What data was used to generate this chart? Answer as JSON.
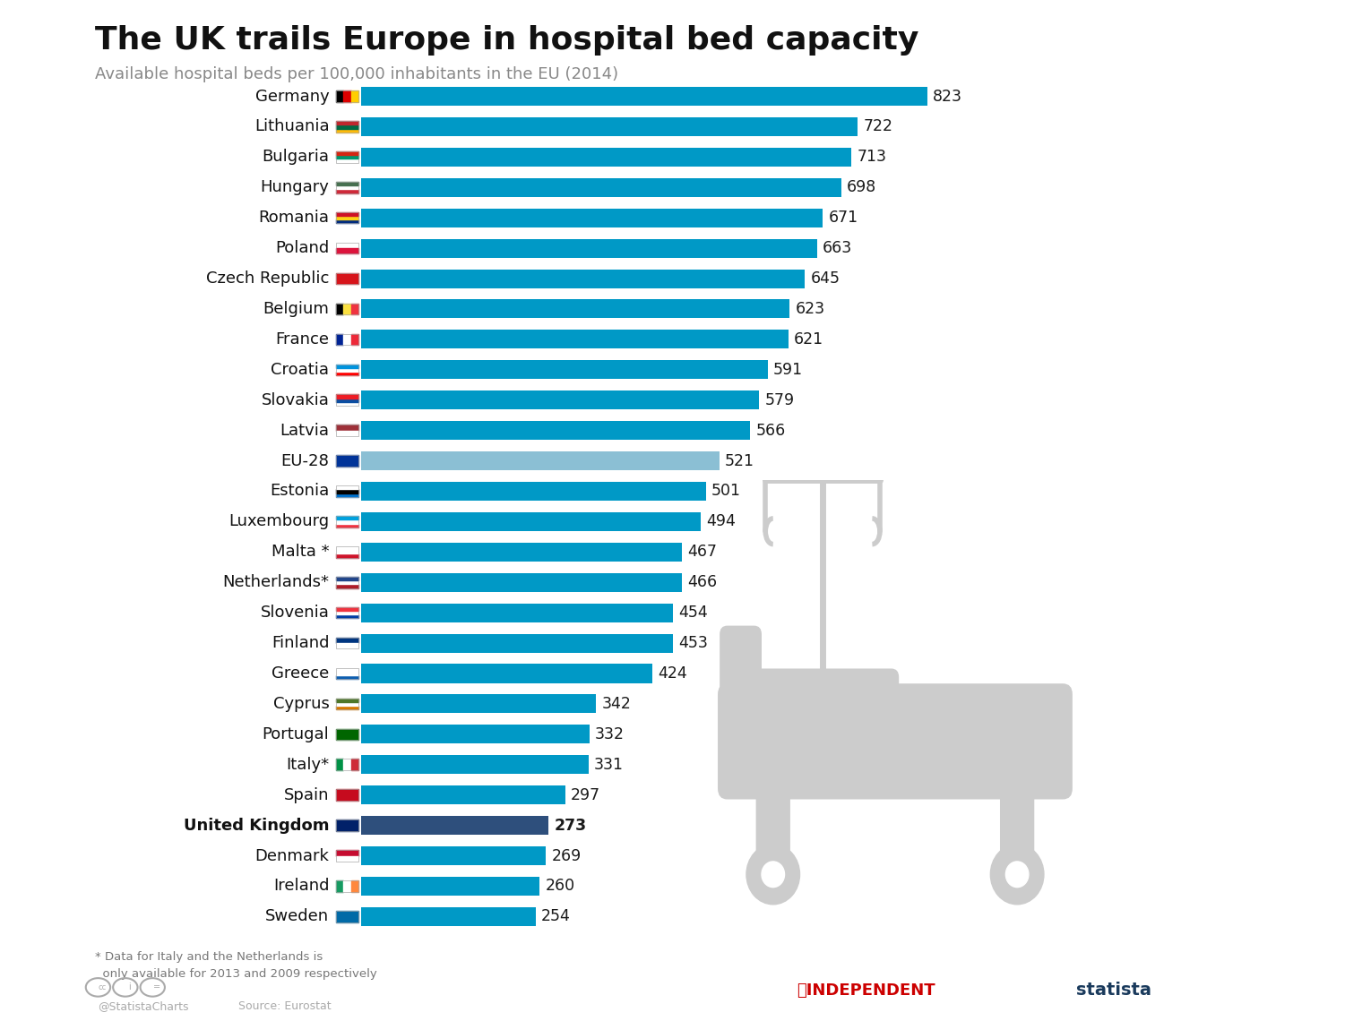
{
  "title": "The UK trails Europe in hospital bed capacity",
  "subtitle": "Available hospital beds per 100,000 inhabitants in the EU (2014)",
  "countries": [
    "Germany",
    "Lithuania",
    "Bulgaria",
    "Hungary",
    "Romania",
    "Poland",
    "Czech Republic",
    "Belgium",
    "France",
    "Croatia",
    "Slovakia",
    "Latvia",
    "EU-28",
    "Estonia",
    "Luxembourg",
    "Malta",
    "Netherlands*",
    "Slovenia",
    "Finland",
    "Greece",
    "Cyprus",
    "Portugal",
    "Italy*",
    "Spain",
    "United Kingdom",
    "Denmark",
    "Ireland",
    "Sweden"
  ],
  "display_names": [
    "Germany",
    "Lithuania",
    "Bulgaria",
    "Hungary",
    "Romania",
    "Poland",
    "Czech Republic",
    "Belgium",
    "France",
    "Croatia",
    "Slovakia",
    "Latvia",
    "EU-28",
    "Estonia",
    "Luxembourg",
    "Malta *",
    "Netherlands*",
    "Slovenia",
    "Finland",
    "Greece",
    "Cyprus",
    "Portugal",
    "Italy*",
    "Spain",
    "United Kingdom",
    "Denmark",
    "Ireland",
    "Sweden"
  ],
  "values": [
    823,
    722,
    713,
    698,
    671,
    663,
    645,
    623,
    621,
    591,
    579,
    566,
    521,
    501,
    494,
    467,
    466,
    454,
    453,
    424,
    342,
    332,
    331,
    297,
    273,
    269,
    260,
    254
  ],
  "bar_color_default": "#0099c6",
  "bar_color_eu28": "#8bbfd4",
  "bar_color_uk": "#2e4f7c",
  "background_color": "#ffffff",
  "title_fontsize": 26,
  "subtitle_fontsize": 13,
  "label_fontsize": 13,
  "value_fontsize": 12.5,
  "footnote_line1": "* Data for Italy and the Netherlands is",
  "footnote_line2": "  only available for 2013 and 2009 respectively",
  "source_label": "Source: Eurostat",
  "credit_label": "@StatistaCharts",
  "flag_colors": {
    "Germany": [
      "#000000",
      "#dd0000",
      "#ffce00"
    ],
    "Lithuania": [
      "#fdba0b",
      "#006a44",
      "#c1272d"
    ],
    "Bulgaria": [
      "#ffffff",
      "#00966e",
      "#d62612"
    ],
    "Hungary": [
      "#ce2939",
      "#ffffff",
      "#477050"
    ],
    "Romania": [
      "#002b7f",
      "#fcd116",
      "#ce1126"
    ],
    "Poland": [
      "#ffffff",
      "#dc143c"
    ],
    "Czech Republic": [
      "#d7141a",
      "#ffffff",
      "#11457e"
    ],
    "Belgium": [
      "#000000",
      "#fae042",
      "#ef3340"
    ],
    "France": [
      "#002395",
      "#ffffff",
      "#ed2939"
    ],
    "Croatia": [
      "#ff0000",
      "#ffffff",
      "#0093dd"
    ],
    "Slovakia": [
      "#ffffff",
      "#0b4ea2",
      "#ee1c25"
    ],
    "Latvia": [
      "#9e3039",
      "#ffffff",
      "#9e3039"
    ],
    "EU-28": [
      "#003399",
      "#ffcc00"
    ],
    "Estonia": [
      "#0072ce",
      "#000000",
      "#ffffff"
    ],
    "Luxembourg": [
      "#ef3340",
      "#ffffff",
      "#00a1de"
    ],
    "Malta": [
      "#cf142b",
      "#ffffff"
    ],
    "Netherlands*": [
      "#ae1c28",
      "#ffffff",
      "#21468b"
    ],
    "Slovenia": [
      "#003da5",
      "#ffffff",
      "#ef3340"
    ],
    "Finland": [
      "#003580",
      "#ffffff"
    ],
    "Greece": [
      "#0d5eaf",
      "#ffffff"
    ],
    "Cyprus": [
      "#d57800",
      "#ffffff",
      "#4e7729"
    ],
    "Portugal": [
      "#006600",
      "#ff0000",
      "#ffd700"
    ],
    "Italy*": [
      "#009246",
      "#ffffff",
      "#ce2b37"
    ],
    "Spain": [
      "#c60b1e",
      "#ffc400",
      "#c60b1e"
    ],
    "United Kingdom": [
      "#012169",
      "#ffffff",
      "#c8102e"
    ],
    "Denmark": [
      "#c60c30",
      "#ffffff"
    ],
    "Ireland": [
      "#169b62",
      "#ffffff",
      "#ff883e"
    ],
    "Sweden": [
      "#006aa7",
      "#fecc02"
    ]
  }
}
